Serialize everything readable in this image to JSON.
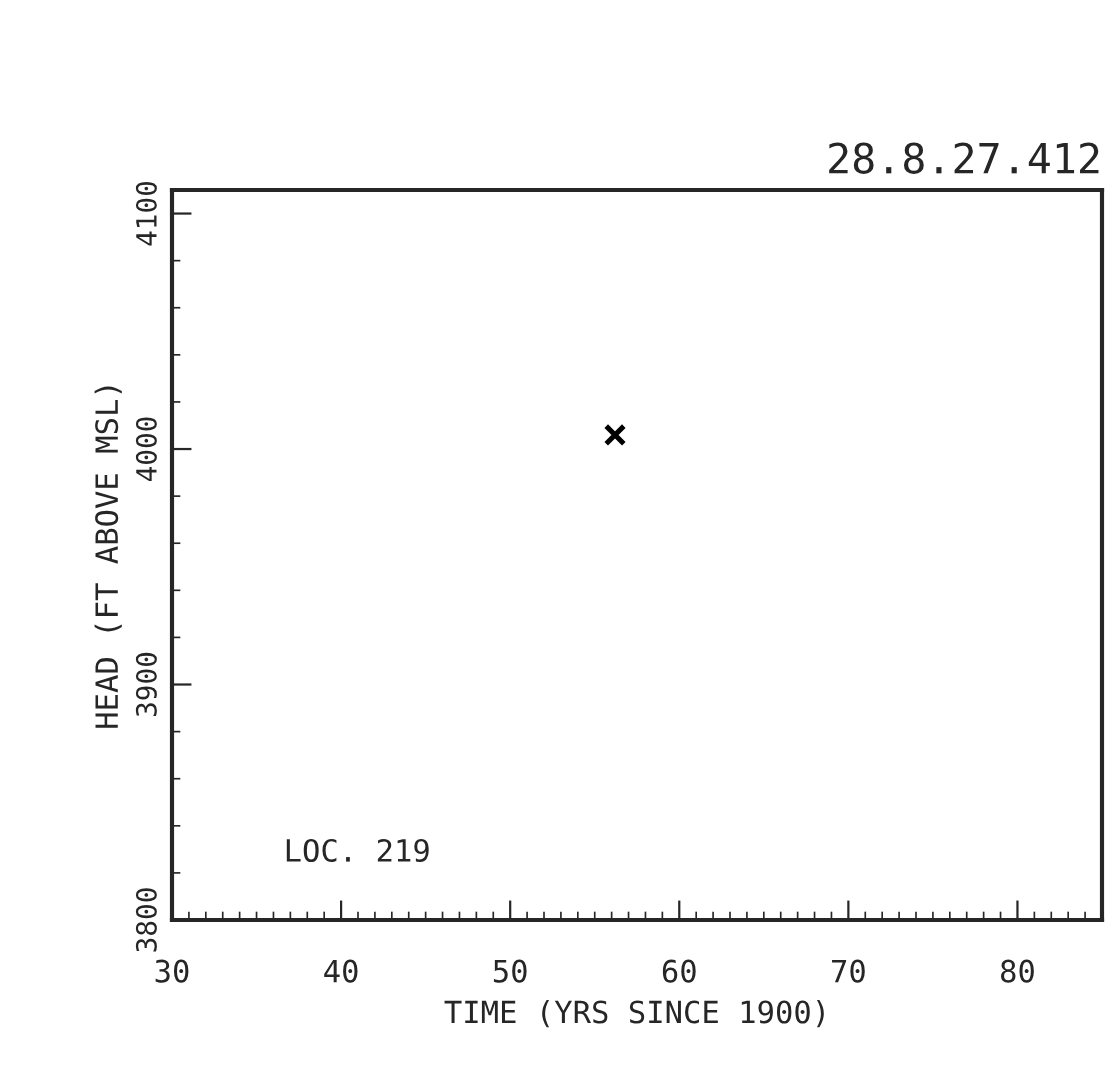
{
  "chart_data": {
    "type": "scatter",
    "title": "28.8.27.412",
    "xlabel": "TIME (YRS SINCE 1900)",
    "ylabel": "HEAD (FT ABOVE MSL)",
    "x": [
      56.2
    ],
    "values": [
      4006
    ],
    "marker": "cross",
    "xlim": [
      30,
      85
    ],
    "xticks": [
      30,
      40,
      50,
      60,
      70,
      80
    ],
    "ylim": [
      3800,
      4110
    ],
    "yticks": [
      3800,
      3900,
      4000,
      4100
    ],
    "annotations": [
      "LOC. 219"
    ],
    "grid": false,
    "legend": false
  }
}
